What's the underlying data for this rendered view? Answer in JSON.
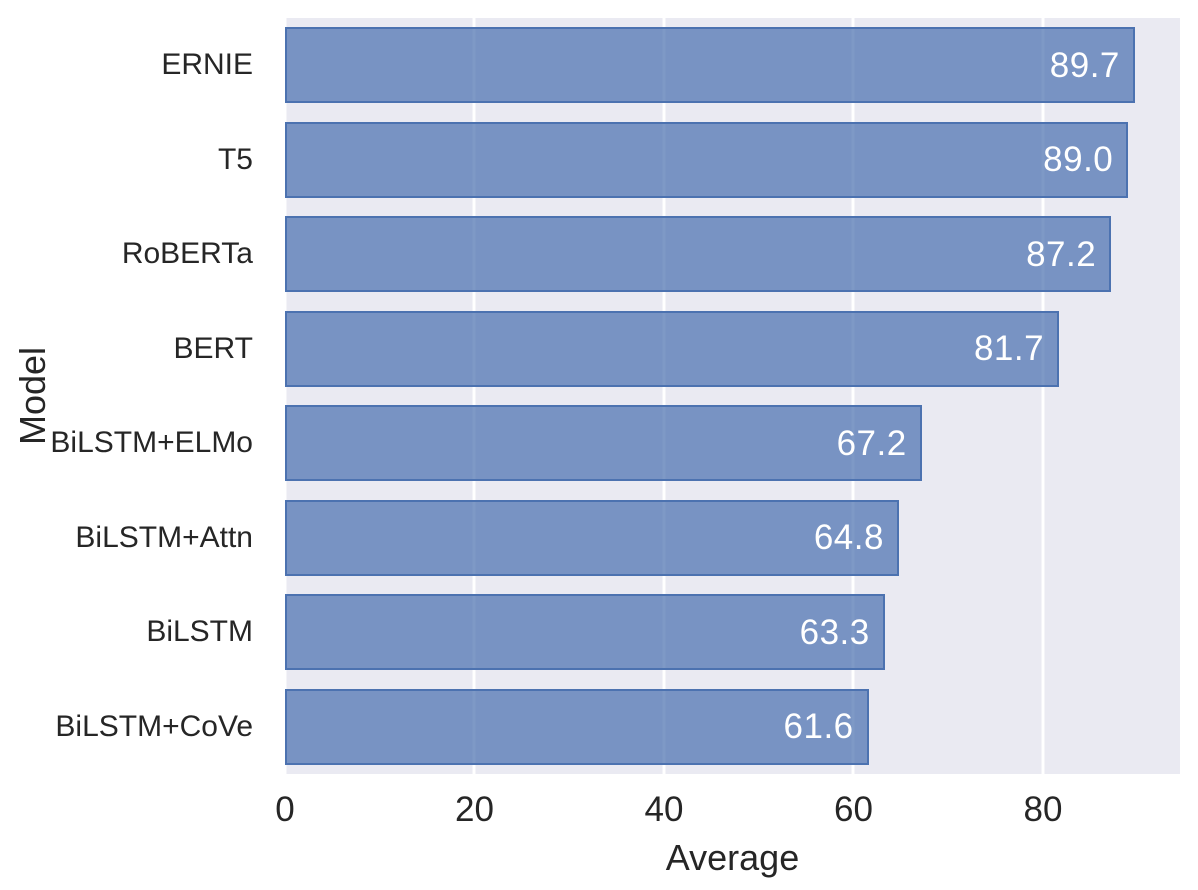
{
  "chart_data": {
    "type": "bar",
    "orientation": "horizontal",
    "title": "",
    "xlabel": "Average",
    "ylabel": "Model",
    "categories": [
      "ERNIE",
      "T5",
      "RoBERTa",
      "BERT",
      "BiLSTM+ELMo",
      "BiLSTM+Attn",
      "BiLSTM",
      "BiLSTM+CoVe"
    ],
    "values": [
      89.7,
      89.0,
      87.2,
      81.7,
      67.2,
      64.8,
      63.3,
      61.6
    ],
    "value_labels": [
      "89.7",
      "89.0",
      "87.2",
      "81.7",
      "67.2",
      "64.8",
      "63.3",
      "61.6"
    ],
    "x_ticks": [
      0,
      20,
      40,
      60,
      80
    ],
    "x_tick_labels": [
      "0",
      "20",
      "40",
      "60",
      "80"
    ],
    "xlim": [
      0,
      94.46
    ],
    "grid": true,
    "legend": false,
    "bar_rel_height": 0.8,
    "colors": {
      "page_background": "#ffffff",
      "plot_background": "#eaeaf2",
      "gridline": "#ffffff",
      "bar_fill": "rgba(76, 114, 176, 0.72)",
      "bar_edge": "#4c72b0",
      "value_text": "#ffffff",
      "tick_text": "#262626"
    }
  }
}
